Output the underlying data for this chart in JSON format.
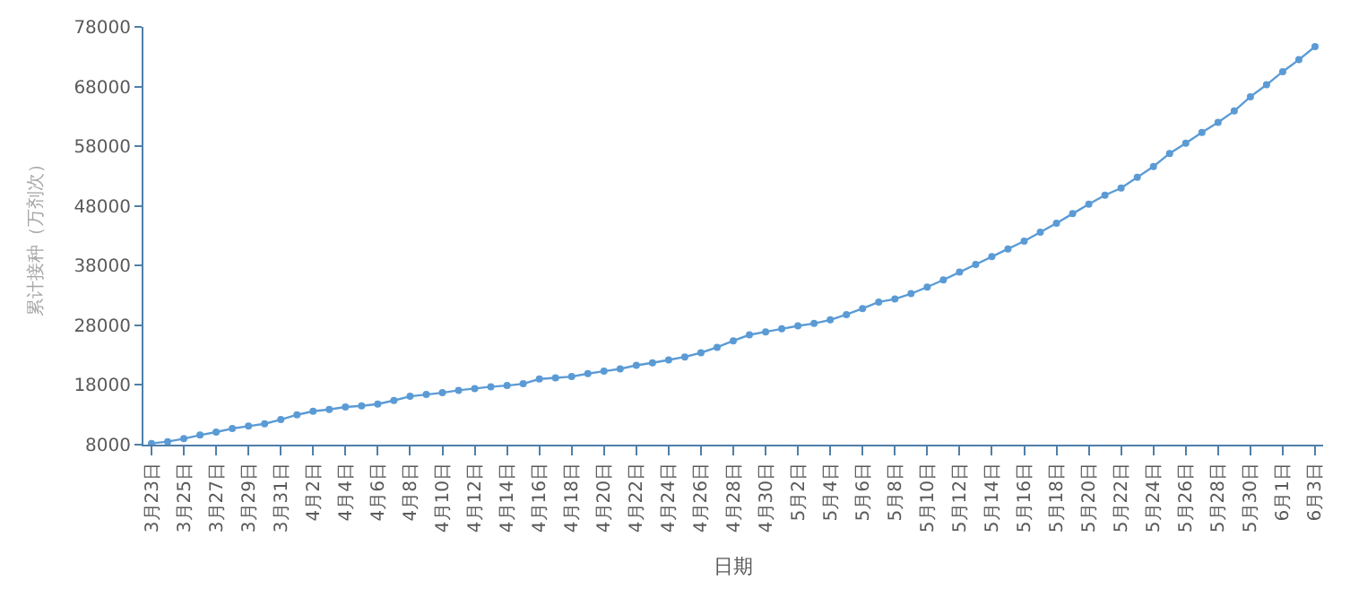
{
  "chart_data": {
    "type": "line",
    "xlabel": "日期",
    "ylabel": "累计接种（万剂次）",
    "categories": [
      "3月23日",
      null,
      "3月25日",
      null,
      "3月27日",
      null,
      "3月29日",
      null,
      "3月31日",
      null,
      "4月2日",
      null,
      "4月4日",
      null,
      "4月6日",
      null,
      "4月8日",
      null,
      "4月10日",
      null,
      "4月12日",
      null,
      "4月14日",
      null,
      "4月16日",
      null,
      "4月18日",
      null,
      "4月20日",
      null,
      "4月22日",
      null,
      "4月24日",
      null,
      "4月26日",
      null,
      "4月28日",
      null,
      "4月30日",
      null,
      "5月2日",
      null,
      "5月4日",
      null,
      "5月6日",
      null,
      "5月8日",
      null,
      "5月10日",
      null,
      "5月12日",
      null,
      "5月14日",
      null,
      "5月16日",
      null,
      "5月18日",
      null,
      "5月20日",
      null,
      "5月22日",
      null,
      "5月24日",
      null,
      "5月26日",
      null,
      "5月28日",
      null,
      "5月30日",
      null,
      "6月1日",
      null,
      "6月3日"
    ],
    "series": [
      {
        "color": "#5b9bd5",
        "values": [
          8200,
          8500,
          9000,
          9600,
          10100,
          10700,
          11100,
          11500,
          12200,
          13000,
          13600,
          13900,
          14300,
          14500,
          14800,
          15400,
          16100,
          16400,
          16700,
          17100,
          17400,
          17700,
          17900,
          18200,
          19000,
          19200,
          19400,
          19900,
          20300,
          20700,
          21300,
          21700,
          22200,
          22700,
          23400,
          24300,
          25400,
          26400,
          26900,
          27400,
          27900,
          28300,
          28900,
          29800,
          30800,
          31900,
          32400,
          33300,
          34400,
          35600,
          36900,
          38200,
          39500,
          40800,
          42100,
          43600,
          45100,
          46700,
          48300,
          49800,
          51000,
          52800,
          54600,
          56800,
          58500,
          60300,
          62000,
          63900,
          66300,
          68300,
          70500,
          72500,
          74700
        ]
      }
    ],
    "ylim": [
      8000,
      78000
    ],
    "yticks": [
      8000,
      18000,
      28000,
      38000,
      48000,
      58000,
      68000,
      78000
    ],
    "marker": "circle",
    "line_style": "solid"
  }
}
